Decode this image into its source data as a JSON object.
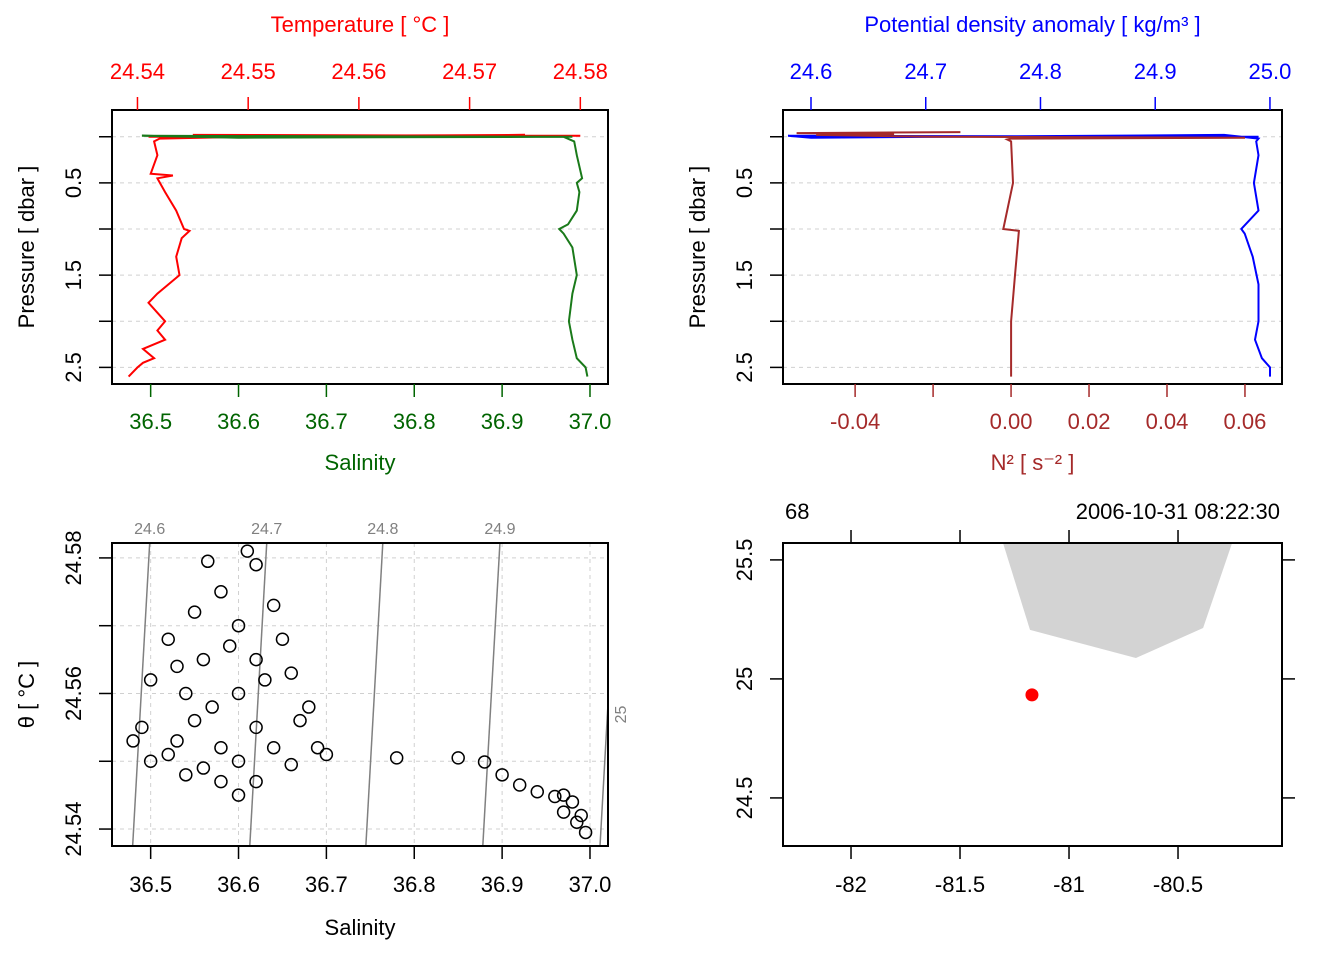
{
  "chart_data": [
    {
      "type": "profile",
      "ylabel": "Pressure [ dbar ]",
      "ylim": [
        2.68,
        -0.29
      ],
      "yticks": [
        0.5,
        1.5,
        2.5
      ],
      "minor_yticks": [
        0,
        1,
        2
      ],
      "grid": true,
      "top_axis": {
        "label": "Temperature [ °C ]",
        "color": "#ff0000",
        "lim": [
          24.5377,
          24.5825
        ],
        "ticks": [
          24.54,
          24.55,
          24.56,
          24.57,
          24.58
        ]
      },
      "bottom_axis": {
        "label": "Salinity",
        "color": "#006400",
        "lim": [
          36.456,
          37.0205
        ],
        "ticks": [
          36.5,
          36.6,
          36.7,
          36.8,
          36.9,
          {
            "value": 37,
            "label": "37.0"
          }
        ]
      },
      "series": [
        {
          "axis": "top",
          "color": "#ff0000",
          "pressure": [
            -0.02,
            -0.01,
            0.0,
            -0.02,
            0.0,
            0.02,
            0.05,
            0.2,
            0.4,
            0.42,
            0.45,
            0.6,
            0.8,
            1.0,
            1.02,
            1.1,
            1.3,
            1.5,
            1.7,
            1.8,
            2.0,
            2.1,
            2.2,
            2.3,
            2.4,
            2.45,
            2.5,
            2.6
          ],
          "values": [
            24.545,
            24.58,
            24.541,
            24.575,
            24.55,
            24.542,
            24.5415,
            24.5418,
            24.5412,
            24.5432,
            24.5418,
            24.5425,
            24.5435,
            24.5442,
            24.5447,
            24.544,
            24.5435,
            24.5438,
            24.5418,
            24.541,
            24.5425,
            24.5418,
            24.5425,
            24.5405,
            24.5415,
            24.5405,
            24.54,
            24.5392
          ]
        },
        {
          "axis": "bottom",
          "color": "#1a7a1a",
          "pressure": [
            0.0,
            -0.01,
            0.01,
            0.0,
            0.05,
            0.2,
            0.45,
            0.5,
            0.6,
            0.8,
            0.95,
            1.0,
            1.05,
            1.2,
            1.5,
            1.7,
            2.0,
            2.2,
            2.4,
            2.5,
            2.6
          ],
          "values": [
            36.98,
            36.49,
            36.6,
            36.97,
            36.982,
            36.985,
            36.991,
            36.985,
            36.988,
            36.985,
            36.975,
            36.965,
            36.97,
            36.98,
            36.985,
            36.98,
            36.976,
            36.98,
            36.985,
            36.995,
            36.997
          ]
        }
      ]
    },
    {
      "type": "profile",
      "ylabel": "Pressure [ dbar ]",
      "ylim": [
        2.68,
        -0.29
      ],
      "yticks": [
        0.5,
        1.5,
        2.5
      ],
      "minor_yticks": [
        0,
        1,
        2
      ],
      "grid": true,
      "top_axis": {
        "label": "Potential density anomaly [ kg/m³ ]",
        "color": "#0000ff",
        "lim": [
          24.5756,
          25.0105
        ],
        "ticks": [
          24.6,
          24.7,
          24.8,
          24.9,
          {
            "value": 25,
            "label": "25.0"
          }
        ]
      },
      "bottom_axis": {
        "label": "N² [ s⁻² ]",
        "color": "#a52a2a",
        "lim": [
          -0.0585,
          0.0695
        ],
        "ticks": [
          -0.04,
          {
            "value": 0,
            "label": "0.00"
          },
          0.02,
          0.04,
          0.06
        ],
        "minor_ticks": [
          -0.02
        ]
      },
      "series": [
        {
          "axis": "top",
          "color": "#0000ff",
          "pressure": [
            0.0,
            -0.01,
            0.01,
            -0.02,
            0.02,
            0.05,
            0.2,
            0.5,
            0.8,
            1.0,
            1.05,
            1.3,
            1.6,
            2.0,
            2.2,
            2.4,
            2.5,
            2.6
          ],
          "values": [
            24.99,
            24.58,
            24.6,
            24.96,
            24.99,
            24.988,
            24.99,
            24.986,
            24.99,
            24.975,
            24.978,
            24.985,
            24.99,
            24.99,
            24.987,
            24.993,
            25.0,
            25.0
          ]
        },
        {
          "axis": "bottom",
          "color": "#a52a2a",
          "pressure": [
            -0.05,
            -0.04,
            -0.03,
            -0.02,
            0.0,
            0.01,
            0.02,
            0.03,
            0.05,
            0.5,
            1.0,
            1.02,
            1.5,
            2.0,
            2.6
          ],
          "values": [
            -0.013,
            -0.055,
            -0.03,
            -0.05,
            -0.02,
            0.06,
            0.0,
            -0.001,
            0.0,
            0.0005,
            -0.002,
            0.002,
            0.001,
            0.0,
            0.0
          ]
        }
      ]
    },
    {
      "type": "ts",
      "xlabel": "Salinity",
      "ylabel": "θ [ °C ]",
      "xlim": [
        36.456,
        37.0205
      ],
      "ylim": [
        24.5375,
        24.5822
      ],
      "xticks": [
        36.5,
        36.6,
        36.7,
        36.8,
        36.9,
        {
          "value": 37,
          "label": "37.0"
        }
      ],
      "yticks": [
        24.54,
        24.56,
        24.58
      ],
      "minor_yticks": [
        24.55,
        24.57
      ],
      "grid": true,
      "isopycnals": [
        {
          "sigma": 24.6,
          "salinity": [
            36.4795,
            36.4989
          ]
        },
        {
          "sigma": 24.7,
          "salinity": [
            36.6128,
            36.6321
          ]
        },
        {
          "sigma": 24.8,
          "salinity": [
            36.7449,
            36.7642
          ]
        },
        {
          "sigma": 24.9,
          "salinity": [
            36.878,
            36.8975
          ]
        },
        {
          "sigma": 25,
          "salinity": [
            37.0114,
            37.0308
          ]
        }
      ],
      "points": {
        "salinity": [
          36.565,
          36.61,
          36.62,
          36.58,
          36.64,
          36.55,
          36.6,
          36.65,
          36.52,
          36.56,
          36.62,
          36.66,
          36.5,
          36.54,
          36.6,
          36.68,
          36.49,
          36.55,
          36.62,
          36.67,
          36.48,
          36.53,
          36.58,
          36.64,
          36.69,
          36.5,
          36.56,
          36.6,
          36.66,
          36.54,
          36.58,
          36.6,
          36.62,
          36.52,
          36.57,
          36.63,
          36.59,
          36.53,
          36.7,
          36.78,
          36.85,
          36.88,
          36.9,
          36.92,
          36.94,
          36.96,
          36.97,
          36.98,
          36.99,
          36.995,
          36.97,
          36.985
        ],
        "theta": [
          24.5795,
          24.581,
          24.579,
          24.575,
          24.573,
          24.572,
          24.57,
          24.568,
          24.568,
          24.565,
          24.565,
          24.563,
          24.562,
          24.56,
          24.56,
          24.558,
          24.555,
          24.556,
          24.555,
          24.556,
          24.553,
          24.553,
          24.552,
          24.552,
          24.552,
          24.55,
          24.549,
          24.55,
          24.5495,
          24.548,
          24.547,
          24.545,
          24.547,
          24.551,
          24.558,
          24.562,
          24.567,
          24.564,
          24.551,
          24.5505,
          24.5505,
          24.5499,
          24.548,
          24.5465,
          24.5455,
          24.5448,
          24.545,
          24.544,
          24.542,
          24.5395,
          24.5425,
          24.541
        ]
      }
    },
    {
      "type": "map",
      "station": "68",
      "time": "2006-10-31 08:22:30",
      "xlim": [
        -82.312,
        -80.023
      ],
      "ylim": [
        24.298,
        25.571
      ],
      "xticks": [
        -82,
        -81.5,
        -81,
        -80.5
      ],
      "yticks": [
        24.5,
        25,
        25.5
      ],
      "land_color": "#d3d3d3",
      "station_color": "#ff0000",
      "land": {
        "lon": [
          -81.303,
          -81.179,
          -80.693,
          -80.385,
          -80.252
        ],
        "lat": [
          25.571,
          25.206,
          25.088,
          25.214,
          25.571
        ]
      },
      "position": {
        "lon": -81.17,
        "lat": 24.933
      }
    }
  ]
}
